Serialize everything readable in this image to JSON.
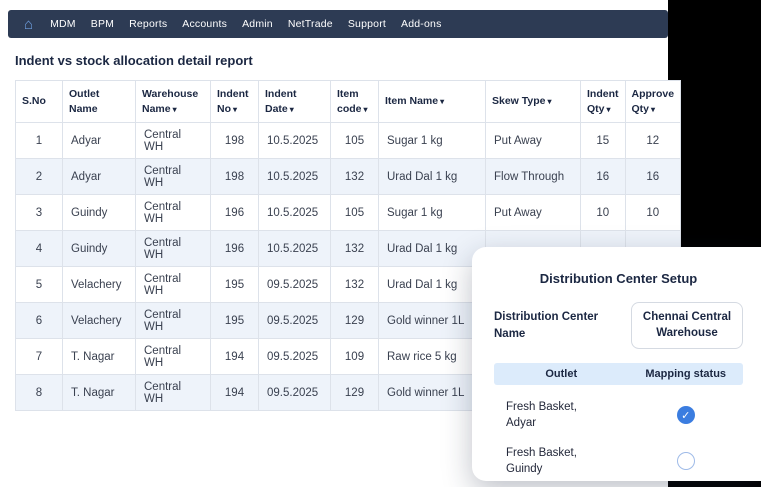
{
  "colors": {
    "nav_bg": "#2d3b54",
    "accent_blue": "#3b7de0",
    "stripe_bg": "#eef3fa",
    "strip_bg": "#dcebfb",
    "table_border": "#dde2ea",
    "text_dark": "#1b2742",
    "cell_text": "#3a4150",
    "home_icon_color": "#6f9fe0",
    "side_panel": "#000000",
    "unchecked_ring": "#9fbbe8"
  },
  "icons": {
    "home": "⌂",
    "sort": "▾",
    "check": "✓"
  },
  "nav": {
    "items": [
      {
        "label": "MDM"
      },
      {
        "label": "BPM"
      },
      {
        "label": "Reports"
      },
      {
        "label": "Accounts"
      },
      {
        "label": "Admin"
      },
      {
        "label": "NetTrade"
      },
      {
        "label": "Support"
      },
      {
        "label": "Add-ons"
      }
    ]
  },
  "page": {
    "title": "Indent vs stock allocation detail report"
  },
  "table": {
    "columns": [
      {
        "label": "S.No",
        "sortable": false
      },
      {
        "label": "Outlet Name",
        "sortable": false
      },
      {
        "label": "Warehouse Name",
        "sortable": true
      },
      {
        "label": "Indent No",
        "sortable": true
      },
      {
        "label": "Indent Date",
        "sortable": true
      },
      {
        "label": "Item code",
        "sortable": true
      },
      {
        "label": "Item Name",
        "sortable": true
      },
      {
        "label": "Skew Type",
        "sortable": true
      },
      {
        "label": "Indent Qty",
        "sortable": true
      },
      {
        "label": "Approve Qty",
        "sortable": true
      }
    ],
    "rows": [
      [
        "1",
        "Adyar",
        "Central WH",
        "198",
        "10.5.2025",
        "105",
        "Sugar 1 kg",
        "Put Away",
        "15",
        "12"
      ],
      [
        "2",
        "Adyar",
        "Central WH",
        "198",
        "10.5.2025",
        "132",
        "Urad Dal 1 kg",
        "Flow Through",
        "16",
        "16"
      ],
      [
        "3",
        "Guindy",
        "Central WH",
        "196",
        "10.5.2025",
        "105",
        "Sugar 1 kg",
        "Put Away",
        "10",
        "10"
      ],
      [
        "4",
        "Guindy",
        "Central WH",
        "196",
        "10.5.2025",
        "132",
        "Urad Dal 1 kg",
        "",
        "",
        ""
      ],
      [
        "5",
        "Velachery",
        "Central WH",
        "195",
        "09.5.2025",
        "132",
        "Urad Dal 1 kg",
        "",
        "",
        ""
      ],
      [
        "6",
        "Velachery",
        "Central WH",
        "195",
        "09.5.2025",
        "129",
        "Gold winner 1L",
        "",
        "",
        ""
      ],
      [
        "7",
        "T. Nagar",
        "Central WH",
        "194",
        "09.5.2025",
        "109",
        "Raw rice 5 kg",
        "",
        "",
        ""
      ],
      [
        "8",
        "T. Nagar",
        "Central WH",
        "194",
        "09.5.2025",
        "129",
        "Gold winner 1L",
        "",
        "",
        ""
      ]
    ]
  },
  "modal": {
    "title": "Distribution Center Setup",
    "field_label": "Distribution Center Name",
    "field_value": "Chennai Central Warehouse",
    "columns": [
      "Outlet",
      "Mapping status"
    ],
    "rows": [
      {
        "outlet": "Fresh Basket,\nAdyar",
        "mapped": true
      },
      {
        "outlet": "Fresh Basket,\nGuindy",
        "mapped": false
      }
    ]
  }
}
